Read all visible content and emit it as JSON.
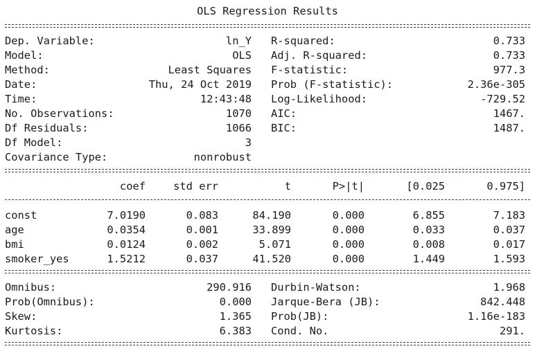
{
  "title": "OLS Regression Results",
  "top_left": [
    {
      "label": "Dep. Variable:",
      "value": "ln_Y"
    },
    {
      "label": "Model:",
      "value": "OLS"
    },
    {
      "label": "Method:",
      "value": "Least Squares"
    },
    {
      "label": "Date:",
      "value": "Thu, 24 Oct 2019"
    },
    {
      "label": "Time:",
      "value": "12:43:48"
    },
    {
      "label": "No. Observations:",
      "value": "1070"
    },
    {
      "label": "Df Residuals:",
      "value": "1066"
    },
    {
      "label": "Df Model:",
      "value": "3"
    },
    {
      "label": "Covariance Type:",
      "value": "nonrobust"
    }
  ],
  "top_right": [
    {
      "label": "R-squared:",
      "value": "0.733"
    },
    {
      "label": "Adj. R-squared:",
      "value": "0.733"
    },
    {
      "label": "F-statistic:",
      "value": "977.3"
    },
    {
      "label": "Prob (F-statistic):",
      "value": "2.36e-305"
    },
    {
      "label": "Log-Likelihood:",
      "value": "-729.52"
    },
    {
      "label": "AIC:",
      "value": "1467."
    },
    {
      "label": "BIC:",
      "value": "1487."
    }
  ],
  "coef_headers": [
    "coef",
    "std err",
    "t",
    "P>|t|",
    "[0.025",
    "0.975]"
  ],
  "coef_rows": [
    {
      "name": "const",
      "values": [
        "7.0190",
        "0.083",
        "84.190",
        "0.000",
        "6.855",
        "7.183"
      ]
    },
    {
      "name": "age",
      "values": [
        "0.0354",
        "0.001",
        "33.899",
        "0.000",
        "0.033",
        "0.037"
      ]
    },
    {
      "name": "bmi",
      "values": [
        "0.0124",
        "0.002",
        "5.071",
        "0.000",
        "0.008",
        "0.017"
      ]
    },
    {
      "name": "smoker_yes",
      "values": [
        "1.5212",
        "0.037",
        "41.520",
        "0.000",
        "1.449",
        "1.593"
      ]
    }
  ],
  "bottom_left": [
    {
      "label": "Omnibus:",
      "value": "290.916"
    },
    {
      "label": "Prob(Omnibus):",
      "value": "0.000"
    },
    {
      "label": "Skew:",
      "value": "1.365"
    },
    {
      "label": "Kurtosis:",
      "value": "6.383"
    }
  ],
  "bottom_right": [
    {
      "label": "Durbin-Watson:",
      "value": "1.968"
    },
    {
      "label": "Jarque-Bera (JB):",
      "value": "842.448"
    },
    {
      "label": "Prob(JB):",
      "value": "1.16e-183"
    },
    {
      "label": "Cond. No.",
      "value": "291."
    }
  ]
}
